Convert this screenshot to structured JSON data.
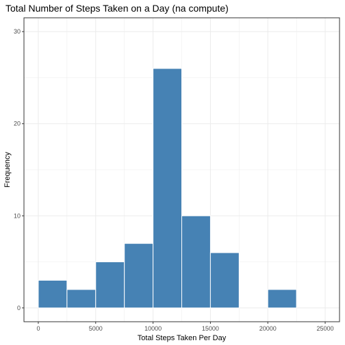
{
  "chart_data": {
    "type": "bar",
    "title": "Total Number of Steps Taken on a Day (na compute)",
    "xlabel": "Total Steps Taken Per Day",
    "ylabel": "Frequency",
    "xlim": [
      -1250,
      26250
    ],
    "ylim": [
      -1.5,
      31.5
    ],
    "x_ticks": [
      0,
      5000,
      10000,
      15000,
      20000,
      25000
    ],
    "y_ticks": [
      0,
      10,
      20,
      30
    ],
    "grid": true,
    "bar_color": "#4682B4",
    "bar_outline": "#ffffff",
    "panel_border": "#333333",
    "grid_color": "#EBEBEB",
    "bins": [
      {
        "start": 0,
        "end": 2500,
        "count": 3
      },
      {
        "start": 2500,
        "end": 5000,
        "count": 2
      },
      {
        "start": 5000,
        "end": 7500,
        "count": 5
      },
      {
        "start": 7500,
        "end": 10000,
        "count": 7
      },
      {
        "start": 10000,
        "end": 12500,
        "count": 26
      },
      {
        "start": 12500,
        "end": 15000,
        "count": 10
      },
      {
        "start": 15000,
        "end": 17500,
        "count": 6
      },
      {
        "start": 17500,
        "end": 20000,
        "count": 0
      },
      {
        "start": 20000,
        "end": 22500,
        "count": 2
      },
      {
        "start": 22500,
        "end": 25000,
        "count": 0
      }
    ]
  }
}
